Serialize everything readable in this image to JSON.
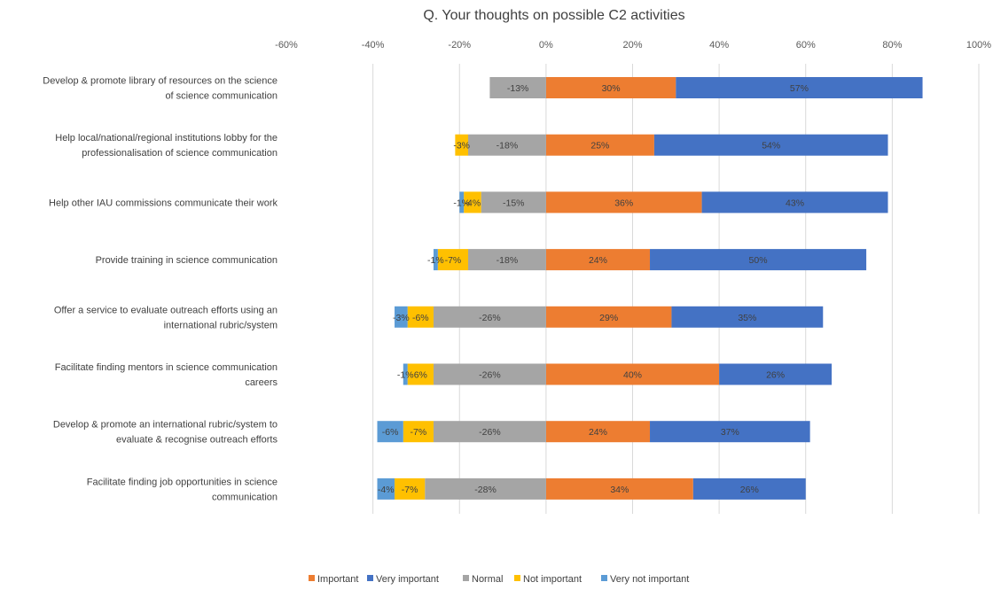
{
  "chart_data": {
    "type": "bar",
    "orientation": "horizontal",
    "stacked": true,
    "diverging": true,
    "title": "Q. Your thoughts on possible C2 activities",
    "xlim": [
      -60,
      100
    ],
    "x_ticks": [
      -60,
      -40,
      -20,
      0,
      20,
      40,
      60,
      80,
      100
    ],
    "x_tick_labels": [
      "-60%",
      "-40%",
      "-20%",
      "0%",
      "20%",
      "40%",
      "60%",
      "80%",
      "100%"
    ],
    "grid": true,
    "legend_position": "bottom",
    "categories": [
      [
        "Develop & promote library of resources on the science",
        "of science communication"
      ],
      [
        "Help local/national/regional institutions lobby for the",
        "professionalisation of science communication"
      ],
      [
        "Help other IAU commissions communicate their work"
      ],
      [
        "Provide training in science communication"
      ],
      [
        "Offer a service to evaluate outreach efforts using an",
        "international rubric/system"
      ],
      [
        "Facilitate finding mentors in science communication",
        "careers"
      ],
      [
        "Develop & promote an international rubric/system to",
        "evaluate & recognise outreach efforts"
      ],
      [
        "Facilitate finding job opportunities in science",
        "communication"
      ]
    ],
    "series": [
      {
        "name": "Important",
        "color": "#ED7D31",
        "side": "positive",
        "values": [
          30,
          25,
          36,
          24,
          29,
          40,
          24,
          34
        ],
        "labels": [
          "30%",
          "25%",
          "36%",
          "24%",
          "29%",
          "40%",
          "24%",
          "34%"
        ]
      },
      {
        "name": "Very important",
        "color": "#4472C4",
        "side": "positive",
        "values": [
          57,
          54,
          43,
          50,
          35,
          26,
          37,
          26
        ],
        "labels": [
          "57%",
          "54%",
          "43%",
          "50%",
          "35%",
          "26%",
          "37%",
          "26%"
        ]
      },
      {
        "name": "Normal",
        "color": "#A5A5A5",
        "side": "negative",
        "values": [
          13,
          18,
          15,
          18,
          26,
          26,
          26,
          28
        ],
        "labels": [
          "-13%",
          "-18%",
          "-15%",
          "-18%",
          "-26%",
          "-26%",
          "-26%",
          "-28%"
        ]
      },
      {
        "name": "Not important",
        "color": "#FFC000",
        "side": "negative",
        "values": [
          0,
          3,
          4,
          7,
          6,
          6,
          7,
          7
        ],
        "labels": [
          "",
          "-3%",
          "-4%",
          "-7%",
          "-6%",
          "6%",
          "-7%",
          "-7%"
        ]
      },
      {
        "name": "Very not important",
        "color": "#5B9BD5",
        "side": "negative",
        "values": [
          0,
          0,
          1,
          1,
          3,
          1,
          6,
          4
        ],
        "labels": [
          "",
          "",
          "-1%",
          "-1%",
          "-3%",
          "-1%",
          "-6%",
          "-4%"
        ]
      }
    ],
    "legend_order": [
      "Important",
      "Very important",
      "Normal",
      "Not important",
      "Very not important"
    ]
  }
}
